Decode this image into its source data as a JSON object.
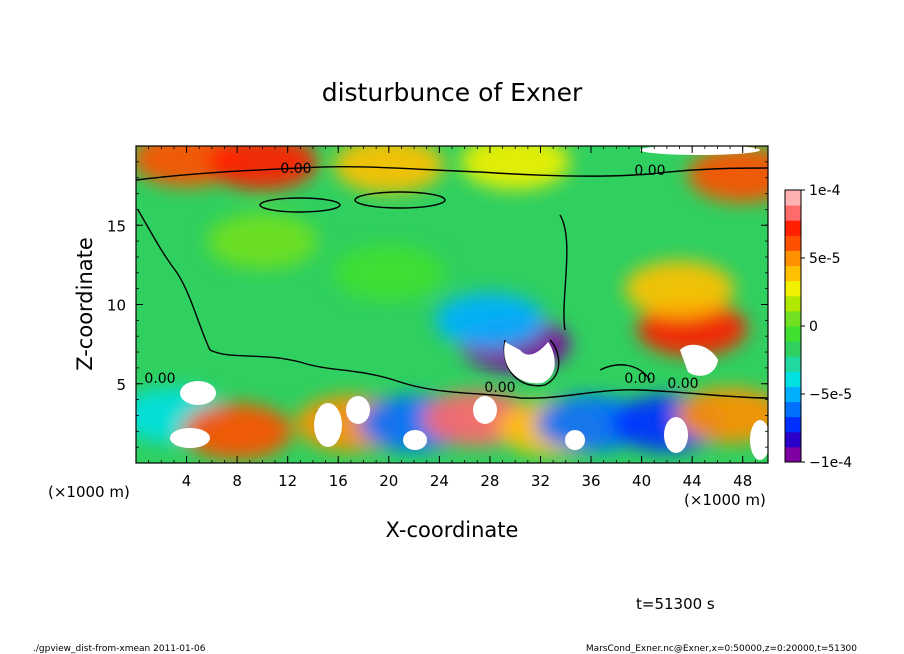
{
  "chart_data": {
    "type": "heatmap",
    "title": "disturbunce of Exner",
    "xlabel": "X-coordinate",
    "ylabel": "Z-coordinate",
    "x_unit_left": "(×1000 m)",
    "x_unit_right": "(×1000 m)",
    "xlim": [
      0,
      50
    ],
    "ylim": [
      0,
      20
    ],
    "x_ticks": [
      "4",
      "8",
      "12",
      "16",
      "20",
      "24",
      "28",
      "32",
      "36",
      "40",
      "44",
      "48"
    ],
    "x_tick_values": [
      4,
      8,
      12,
      16,
      20,
      24,
      28,
      32,
      36,
      40,
      44,
      48
    ],
    "y_ticks": [
      "5",
      "10",
      "15"
    ],
    "y_tick_values": [
      5,
      10,
      15
    ],
    "colorbar": {
      "min": -0.0001,
      "max": 0.0001,
      "labels": [
        "1e-4",
        "5e-5",
        "0",
        "−5e-5",
        "−1e-4"
      ],
      "label_values": [
        0.0001,
        5e-05,
        0,
        -5e-05,
        -0.0001
      ],
      "colors": [
        "#7f00a0",
        "#2a00c8",
        "#0030ff",
        "#0070ff",
        "#00b0ff",
        "#00e0e0",
        "#20d8a0",
        "#30d060",
        "#40e030",
        "#70e020",
        "#b0e800",
        "#f0f000",
        "#ffc000",
        "#ff9000",
        "#ff5000",
        "#ff2000",
        "#ff6a6a",
        "#ffb0b0"
      ]
    },
    "contour_labels": [
      "0.00",
      "0.00",
      "0.00",
      "0.00",
      "0.00",
      "0.00"
    ],
    "fields": [
      {
        "x": 4,
        "z": 19.2,
        "v": 6e-05
      },
      {
        "x": 10,
        "z": 19.0,
        "v": 7e-05
      },
      {
        "x": 20,
        "z": 18.8,
        "v": 4e-05
      },
      {
        "x": 30,
        "z": 19.0,
        "v": 3e-05
      },
      {
        "x": 48,
        "z": 18.2,
        "v": 6e-05
      },
      {
        "x": 44,
        "z": 8.5,
        "v": 7e-05
      },
      {
        "x": 43,
        "z": 11,
        "v": 4e-05
      },
      {
        "x": 30,
        "z": 7.5,
        "v": -9e-05
      },
      {
        "x": 28,
        "z": 9,
        "v": -5e-05
      },
      {
        "x": 20,
        "z": 12,
        "v": -1e-05
      },
      {
        "x": 10,
        "z": 14,
        "v": 1e-05
      },
      {
        "x": 3,
        "z": 3,
        "v": -4e-05
      },
      {
        "x": 8,
        "z": 2,
        "v": 6e-05
      },
      {
        "x": 17,
        "z": 2.5,
        "v": 5e-05
      },
      {
        "x": 22,
        "z": 2.5,
        "v": -6e-05
      },
      {
        "x": 27,
        "z": 2.8,
        "v": 8e-05
      },
      {
        "x": 33,
        "z": 2.2,
        "v": 4e-05
      },
      {
        "x": 36,
        "z": 2.5,
        "v": -6e-05
      },
      {
        "x": 42,
        "z": 2.5,
        "v": -7e-05
      },
      {
        "x": 47,
        "z": 3,
        "v": 5e-05
      }
    ]
  },
  "time_label": "t=51300 s",
  "footer_left": "./gpview_dist-from-xmean  2011-01-06",
  "footer_right": "MarsCond_Exner.nc@Exner,x=0:50000,z=0:20000,t=51300"
}
